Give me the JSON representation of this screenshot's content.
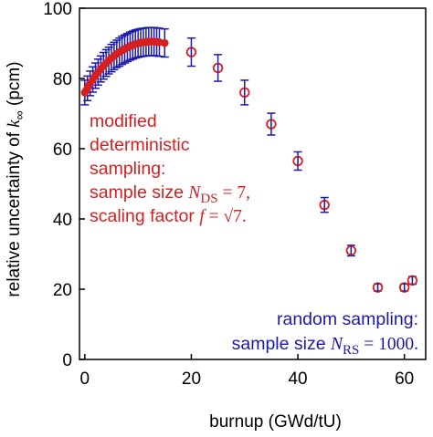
{
  "chart_data": {
    "type": "scatter",
    "xlabel": "burnup (GWd/tU)",
    "ylabel_prefix": "relative uncertainty of ",
    "ylabel_symbol": "k",
    "ylabel_subscript": "∞",
    "ylabel_suffix": " (pcm)",
    "xlim": [
      -1,
      64
    ],
    "ylim": [
      0,
      100
    ],
    "xticks": [
      0,
      20,
      40,
      60
    ],
    "yticks": [
      0,
      20,
      40,
      60,
      80,
      100
    ],
    "grid": false,
    "series": [
      {
        "name": "modified deterministic sampling",
        "marker": "filled-circle",
        "color": "#d42020",
        "points": [
          {
            "x": 0.0,
            "y": 76.0
          },
          {
            "x": 0.25,
            "y": 76.5
          },
          {
            "x": 0.5,
            "y": 77.2
          },
          {
            "x": 0.75,
            "y": 77.9
          },
          {
            "x": 1.0,
            "y": 78.6
          },
          {
            "x": 1.5,
            "y": 79.7
          },
          {
            "x": 2.0,
            "y": 80.8
          },
          {
            "x": 2.5,
            "y": 81.8
          },
          {
            "x": 3.0,
            "y": 82.7
          },
          {
            "x": 3.5,
            "y": 83.6
          },
          {
            "x": 4.0,
            "y": 84.4
          },
          {
            "x": 4.5,
            "y": 85.1
          },
          {
            "x": 5.0,
            "y": 85.8
          },
          {
            "x": 5.5,
            "y": 86.4
          },
          {
            "x": 6.0,
            "y": 87.0
          },
          {
            "x": 6.5,
            "y": 87.5
          },
          {
            "x": 7.0,
            "y": 88.0
          },
          {
            "x": 7.5,
            "y": 88.4
          },
          {
            "x": 8.0,
            "y": 88.8
          },
          {
            "x": 8.5,
            "y": 89.2
          },
          {
            "x": 9.0,
            "y": 89.5
          },
          {
            "x": 9.5,
            "y": 89.8
          },
          {
            "x": 10.0,
            "y": 90.0
          },
          {
            "x": 10.5,
            "y": 90.2
          },
          {
            "x": 11.0,
            "y": 90.3
          },
          {
            "x": 11.5,
            "y": 90.4
          },
          {
            "x": 12.0,
            "y": 90.5
          },
          {
            "x": 12.5,
            "y": 90.5
          },
          {
            "x": 13.0,
            "y": 90.5
          },
          {
            "x": 13.5,
            "y": 90.4
          },
          {
            "x": 14.0,
            "y": 90.3
          },
          {
            "x": 15.0,
            "y": 90.1
          }
        ]
      },
      {
        "name": "random sampling",
        "marker": "open-circle-errorbar",
        "color": "#1a1aa6",
        "points": [
          {
            "x": 0.0,
            "y": 76.0,
            "err": 3.5
          },
          {
            "x": 0.5,
            "y": 77.2,
            "err": 3.5
          },
          {
            "x": 1.0,
            "y": 78.6,
            "err": 3.5
          },
          {
            "x": 1.5,
            "y": 79.7,
            "err": 3.6
          },
          {
            "x": 2.0,
            "y": 80.8,
            "err": 3.6
          },
          {
            "x": 2.5,
            "y": 81.8,
            "err": 3.7
          },
          {
            "x": 3.0,
            "y": 82.7,
            "err": 3.7
          },
          {
            "x": 3.5,
            "y": 83.6,
            "err": 3.8
          },
          {
            "x": 4.0,
            "y": 84.4,
            "err": 3.8
          },
          {
            "x": 4.5,
            "y": 85.1,
            "err": 3.8
          },
          {
            "x": 5.0,
            "y": 85.8,
            "err": 3.9
          },
          {
            "x": 5.5,
            "y": 86.4,
            "err": 3.9
          },
          {
            "x": 6.0,
            "y": 87.0,
            "err": 3.9
          },
          {
            "x": 6.5,
            "y": 87.5,
            "err": 4.0
          },
          {
            "x": 7.0,
            "y": 88.0,
            "err": 4.0
          },
          {
            "x": 7.5,
            "y": 88.4,
            "err": 4.0
          },
          {
            "x": 8.0,
            "y": 88.8,
            "err": 4.0
          },
          {
            "x": 8.5,
            "y": 89.2,
            "err": 4.0
          },
          {
            "x": 9.0,
            "y": 89.5,
            "err": 4.0
          },
          {
            "x": 9.5,
            "y": 89.8,
            "err": 4.0
          },
          {
            "x": 10.0,
            "y": 90.0,
            "err": 4.0
          },
          {
            "x": 10.5,
            "y": 90.2,
            "err": 4.0
          },
          {
            "x": 11.0,
            "y": 90.3,
            "err": 4.0
          },
          {
            "x": 11.5,
            "y": 90.4,
            "err": 4.0
          },
          {
            "x": 12.0,
            "y": 90.5,
            "err": 4.0
          },
          {
            "x": 12.5,
            "y": 90.5,
            "err": 4.0
          },
          {
            "x": 13.0,
            "y": 90.5,
            "err": 4.0
          },
          {
            "x": 13.5,
            "y": 90.4,
            "err": 4.0
          },
          {
            "x": 14.0,
            "y": 90.3,
            "err": 4.0
          },
          {
            "x": 15.0,
            "y": 90.1,
            "err": 4.0
          },
          {
            "x": 20.0,
            "y": 87.5,
            "err": 4.0
          },
          {
            "x": 25.0,
            "y": 83.0,
            "err": 3.8
          },
          {
            "x": 30.0,
            "y": 76.0,
            "err": 3.5
          },
          {
            "x": 35.0,
            "y": 67.0,
            "err": 3.1
          },
          {
            "x": 40.0,
            "y": 56.5,
            "err": 2.6
          },
          {
            "x": 45.0,
            "y": 44.0,
            "err": 2.1
          },
          {
            "x": 50.0,
            "y": 31.0,
            "err": 1.5
          },
          {
            "x": 55.0,
            "y": 20.5,
            "err": 1.0
          },
          {
            "x": 60.0,
            "y": 20.5,
            "err": 1.0
          },
          {
            "x": 61.5,
            "y": 22.5,
            "err": 1.1
          }
        ]
      }
    ],
    "annotation_red": {
      "color": "#d42020",
      "line1": "modified",
      "line2": "deterministic",
      "line3": "sampling:",
      "line4_prefix": "sample size ",
      "line4_symbol": "N",
      "line4_subscript": "DS",
      "line4_suffix": " = 7,",
      "line5_prefix": "scaling factor ",
      "line5_symbol": "f",
      "line5_suffix": " = √7."
    },
    "annotation_blue": {
      "color": "#1a1aa6",
      "line1": "random sampling:",
      "line2_prefix": "sample size ",
      "line2_symbol": "N",
      "line2_subscript": "RS",
      "line2_suffix": " = 1000."
    }
  }
}
